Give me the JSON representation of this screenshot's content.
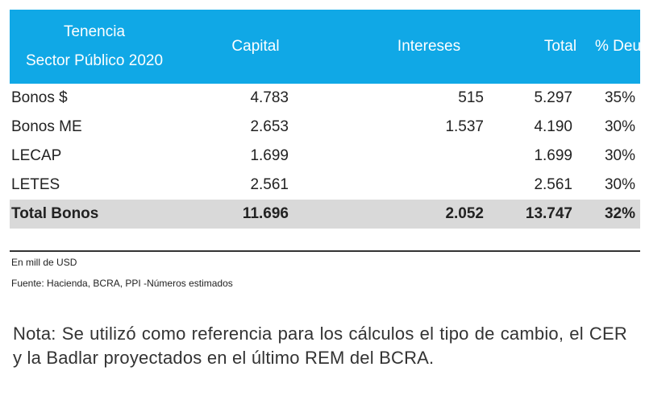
{
  "table": {
    "headers": {
      "tenencia_line1": "Tenencia",
      "tenencia_line2": "Sector Público 2020",
      "capital": "Capital",
      "intereses": "Intereses",
      "total": "Total",
      "deuda": "% Deuda"
    },
    "rows": [
      {
        "label": "Bonos $",
        "capital": "4.783",
        "intereses": "515",
        "total": "5.297",
        "deuda": "35%"
      },
      {
        "label": "Bonos ME",
        "capital": "2.653",
        "intereses": "1.537",
        "total": "4.190",
        "deuda": "30%"
      },
      {
        "label": "LECAP",
        "capital": "1.699",
        "intereses": "",
        "total": "1.699",
        "deuda": "30%"
      },
      {
        "label": "LETES",
        "capital": "2.561",
        "intereses": "",
        "total": "2.561",
        "deuda": "30%"
      }
    ],
    "total_row": {
      "label": "Total Bonos",
      "capital": "11.696",
      "intereses": "2.052",
      "total": "13.747",
      "deuda": "32%"
    }
  },
  "footnotes": {
    "units": "En mill de USD",
    "source": "Fuente: Hacienda, BCRA, PPI -Números estimados"
  },
  "note": "Nota: Se utilizó como referencia para los cálculos el tipo de cambio, el CER y la Badlar proyectados en el último REM del BCRA.",
  "colors": {
    "header_bg": "#10a8e6",
    "total_row_bg": "#d9d9d9"
  }
}
